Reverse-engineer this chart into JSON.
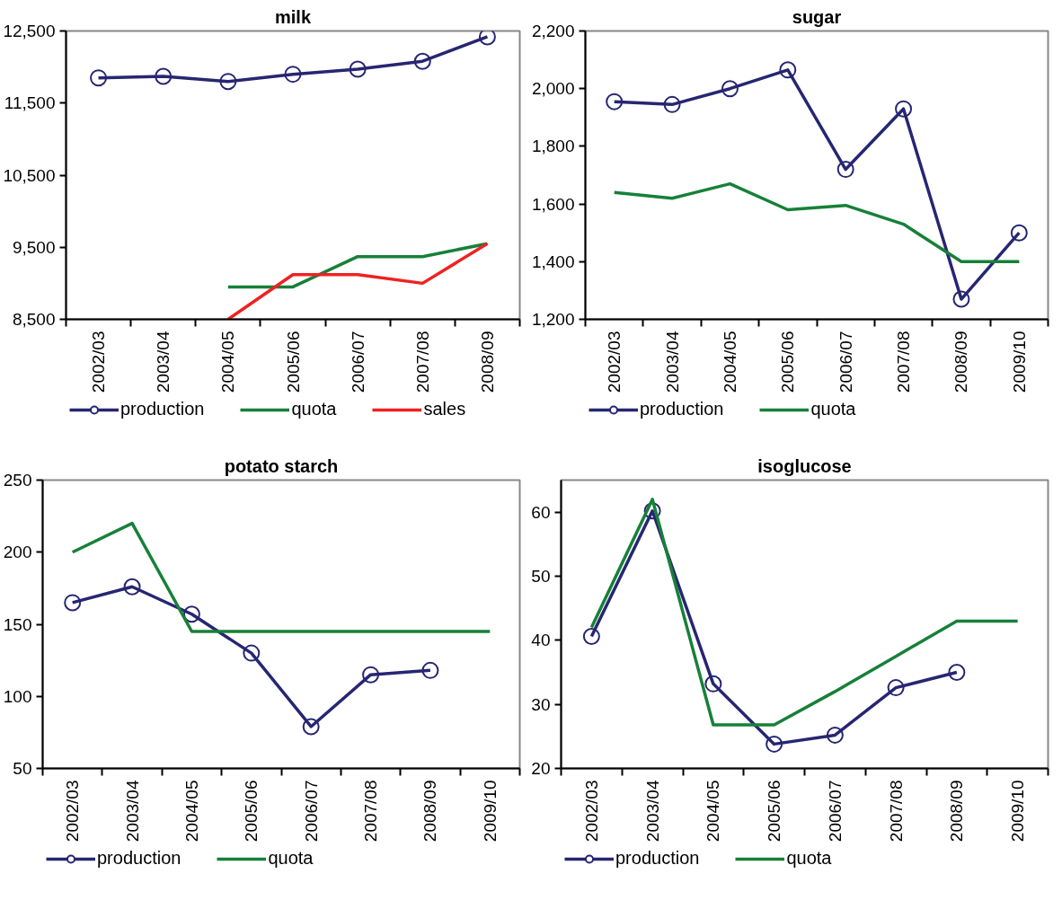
{
  "chart_data": [
    {
      "type": "line",
      "title": "milk",
      "categories": [
        "2002/03",
        "2003/04",
        "2004/05",
        "2005/06",
        "2006/07",
        "2007/08",
        "2008/09"
      ],
      "series": [
        {
          "name": "production",
          "color": "#262672",
          "marker": "circle",
          "values": [
            11850,
            11870,
            11800,
            11900,
            11970,
            12080,
            12420
          ]
        },
        {
          "name": "quota",
          "color": "#178038",
          "marker": "none",
          "values": [
            null,
            null,
            8950,
            8950,
            9370,
            9370,
            9550
          ]
        },
        {
          "name": "sales",
          "color": "#ee2222",
          "marker": "none",
          "values": [
            null,
            null,
            8500,
            9120,
            9120,
            9000,
            9550
          ]
        }
      ],
      "ylim": [
        8500,
        12500
      ],
      "yticks": [
        {
          "value": 8500,
          "label": "8,500"
        },
        {
          "value": 9500,
          "label": "9,500"
        },
        {
          "value": 10500,
          "label": "10,500"
        },
        {
          "value": 11500,
          "label": "11,500"
        },
        {
          "value": 12500,
          "label": "12,500"
        }
      ],
      "grid": false,
      "legend": "bottom"
    },
    {
      "type": "line",
      "title": "sugar",
      "categories": [
        "2002/03",
        "2003/04",
        "2004/05",
        "2005/06",
        "2006/07",
        "2007/08",
        "2008/09",
        "2009/10"
      ],
      "series": [
        {
          "name": "production",
          "color": "#262672",
          "marker": "circle",
          "values": [
            1955,
            1945,
            2000,
            2065,
            1720,
            1930,
            1270,
            1500
          ]
        },
        {
          "name": "quota",
          "color": "#178038",
          "marker": "none",
          "values": [
            1640,
            1620,
            1670,
            1580,
            1595,
            1530,
            1400,
            1400
          ]
        }
      ],
      "ylim": [
        1200,
        2200
      ],
      "yticks": [
        {
          "value": 1200,
          "label": "1,200"
        },
        {
          "value": 1400,
          "label": "1,400"
        },
        {
          "value": 1600,
          "label": "1,600"
        },
        {
          "value": 1800,
          "label": "1,800"
        },
        {
          "value": 2000,
          "label": "2,000"
        },
        {
          "value": 2200,
          "label": "2,200"
        }
      ],
      "grid": false,
      "legend": "bottom"
    },
    {
      "type": "line",
      "title": "potato starch",
      "categories": [
        "2002/03",
        "2003/04",
        "2004/05",
        "2005/06",
        "2006/07",
        "2007/08",
        "2008/09",
        "2009/10"
      ],
      "series": [
        {
          "name": "production",
          "color": "#262672",
          "marker": "circle",
          "values": [
            165,
            176,
            157,
            130,
            79,
            115,
            118,
            null
          ]
        },
        {
          "name": "quota",
          "color": "#178038",
          "marker": "none",
          "values": [
            200,
            220,
            145,
            145,
            145,
            145,
            145,
            145
          ]
        }
      ],
      "ylim": [
        50,
        250
      ],
      "yticks": [
        50,
        100,
        150,
        200,
        250
      ],
      "grid": false,
      "legend": "bottom"
    },
    {
      "type": "line",
      "title": "isoglucose",
      "categories": [
        "2002/03",
        "2003/04",
        "2004/05",
        "2005/06",
        "2006/07",
        "2007/08",
        "2008/09",
        "2009/10"
      ],
      "series": [
        {
          "name": "production",
          "color": "#262672",
          "marker": "circle",
          "values": [
            40.6,
            60.2,
            33.2,
            23.8,
            25.2,
            32.6,
            35,
            null
          ]
        },
        {
          "name": "quota",
          "color": "#178038",
          "marker": "none",
          "values": [
            42,
            62,
            26.8,
            26.8,
            32,
            37.5,
            43,
            43
          ]
        }
      ],
      "ylim": [
        20,
        65
      ],
      "yticks": [
        20,
        30,
        40,
        50,
        60
      ],
      "grid": false,
      "legend": "bottom"
    }
  ]
}
